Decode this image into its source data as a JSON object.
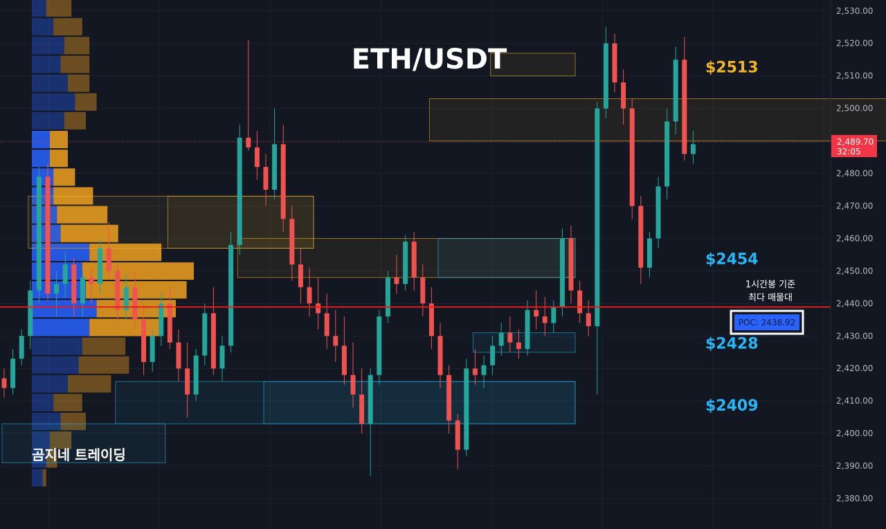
{
  "header": {
    "title": "ETH/USDT"
  },
  "brand": "곰지네 트레이딩",
  "poc_note": {
    "line1": "1시간봉 기준",
    "line2": "최다 매물대"
  },
  "poc_label": "POC: 2438.92",
  "colors": {
    "background": "#131722",
    "bull": "#26a69a",
    "bear": "#ef5350",
    "poc_line": "#e01e1e",
    "zone_orange": "#f0b429",
    "zone_blue": "#29b6f6",
    "vp_blue": "#2962ff",
    "vp_orange": "#f0a020"
  },
  "chart_data": {
    "type": "candlestick",
    "title": "ETH/USDT",
    "xlabel": "",
    "ylabel": "",
    "ylim": [
      2374,
      2533
    ],
    "y_ticks": [
      "2,380.00",
      "2,390.00",
      "2,400.00",
      "2,410.00",
      "2,420.00",
      "2,430.00",
      "2,440.00",
      "2,450.00",
      "2,460.00",
      "2,470.00",
      "2,480.00",
      "2,490.00",
      "2,500.00",
      "2,510.00",
      "2,520.00",
      "2,530.00"
    ],
    "y_tick_values": [
      2380,
      2390,
      2400,
      2410,
      2420,
      2430,
      2440,
      2450,
      2460,
      2470,
      2480,
      2490,
      2500,
      2510,
      2520,
      2530
    ],
    "current_price": {
      "value": 2489.7,
      "label": "2,489.70",
      "countdown": "32:05"
    },
    "poc": {
      "value": 2438.92
    },
    "zone_labels": [
      {
        "text": "$2513",
        "value": 2513,
        "color": "orange"
      },
      {
        "text": "$2454",
        "value": 2454,
        "color": "blue"
      },
      {
        "text": "$2428",
        "value": 2428,
        "color": "blue"
      },
      {
        "text": "$2409",
        "value": 2409,
        "color": "blue"
      }
    ],
    "zones": [
      {
        "start": 0,
        "end": 18,
        "high": 2403,
        "low": 2391,
        "color": "blue"
      },
      {
        "start": 49,
        "end": 110,
        "high": 2503,
        "low": 2490,
        "color": "orange"
      },
      {
        "start": 3,
        "end": 35,
        "high": 2473,
        "low": 2457,
        "color": "orange"
      },
      {
        "start": 19,
        "end": 35,
        "high": 2473,
        "low": 2457,
        "color": "orange"
      },
      {
        "start": 27,
        "end": 65,
        "high": 2460,
        "low": 2448,
        "color": "orange"
      },
      {
        "start": 50,
        "end": 65,
        "high": 2460,
        "low": 2448,
        "color": "blue"
      },
      {
        "start": 54,
        "end": 65,
        "high": 2431,
        "low": 2425,
        "color": "blue"
      },
      {
        "start": 13,
        "end": 65,
        "high": 2416,
        "low": 2403,
        "color": "blue"
      },
      {
        "start": 30,
        "end": 65,
        "high": 2416,
        "low": 2403,
        "color": "blue"
      },
      {
        "start": 56,
        "end": 65,
        "high": 2517,
        "low": 2510,
        "color": "orange"
      }
    ],
    "volume_profile": {
      "price_start": 2383.5,
      "row_height": 5.78,
      "buy": [
        3,
        4,
        5,
        8,
        6,
        10,
        13,
        14,
        16,
        18,
        15,
        14,
        16,
        8,
        7,
        6,
        6,
        5,
        5,
        9,
        12,
        10,
        8,
        9,
        6,
        4,
        4,
        3
      ],
      "sell": [
        1,
        3,
        6,
        7,
        8,
        12,
        14,
        12,
        20,
        22,
        28,
        31,
        20,
        16,
        14,
        11,
        6,
        5,
        5,
        6,
        6,
        6,
        8,
        7,
        8,
        7,
        4,
        3
      ]
    },
    "candles": [
      [
        2417,
        2420,
        2411,
        2414
      ],
      [
        2414,
        2426,
        2412,
        2423
      ],
      [
        2423,
        2432,
        2421,
        2430
      ],
      [
        2430,
        2447,
        2426,
        2444
      ],
      [
        2444,
        2482,
        2440,
        2479
      ],
      [
        2479,
        2483,
        2441,
        2443
      ],
      [
        2443,
        2450,
        2436,
        2446
      ],
      [
        2446,
        2456,
        2442,
        2452
      ],
      [
        2452,
        2454,
        2436,
        2440
      ],
      [
        2440,
        2450,
        2436,
        2448
      ],
      [
        2448,
        2451,
        2440,
        2446
      ],
      [
        2446,
        2460,
        2443,
        2457
      ],
      [
        2457,
        2465,
        2448,
        2450
      ],
      [
        2450,
        2452,
        2434,
        2438
      ],
      [
        2438,
        2449,
        2435,
        2445
      ],
      [
        2445,
        2450,
        2432,
        2435
      ],
      [
        2435,
        2440,
        2418,
        2422
      ],
      [
        2422,
        2432,
        2419,
        2430
      ],
      [
        2430,
        2443,
        2427,
        2440
      ],
      [
        2440,
        2445,
        2426,
        2428
      ],
      [
        2428,
        2432,
        2416,
        2420
      ],
      [
        2420,
        2428,
        2405,
        2412
      ],
      [
        2412,
        2426,
        2410,
        2424
      ],
      [
        2424,
        2440,
        2421,
        2437
      ],
      [
        2437,
        2445,
        2418,
        2420
      ],
      [
        2420,
        2430,
        2416,
        2427
      ],
      [
        2427,
        2462,
        2425,
        2458
      ],
      [
        2458,
        2495,
        2455,
        2491
      ],
      [
        2491,
        2521,
        2487,
        2488
      ],
      [
        2488,
        2493,
        2478,
        2482
      ],
      [
        2482,
        2486,
        2470,
        2475
      ],
      [
        2475,
        2500,
        2472,
        2489
      ],
      [
        2489,
        2495,
        2462,
        2466
      ],
      [
        2466,
        2470,
        2447,
        2452
      ],
      [
        2452,
        2457,
        2440,
        2445
      ],
      [
        2445,
        2451,
        2436,
        2440
      ],
      [
        2440,
        2448,
        2432,
        2437
      ],
      [
        2437,
        2443,
        2426,
        2430
      ],
      [
        2430,
        2438,
        2422,
        2427
      ],
      [
        2427,
        2436,
        2415,
        2418
      ],
      [
        2418,
        2428,
        2408,
        2412
      ],
      [
        2412,
        2420,
        2400,
        2403
      ],
      [
        2403,
        2420,
        2387,
        2418
      ],
      [
        2418,
        2438,
        2415,
        2436
      ],
      [
        2436,
        2450,
        2434,
        2448
      ],
      [
        2448,
        2455,
        2443,
        2446
      ],
      [
        2446,
        2461,
        2444,
        2459
      ],
      [
        2459,
        2462,
        2444,
        2448
      ],
      [
        2448,
        2452,
        2436,
        2440
      ],
      [
        2440,
        2445,
        2426,
        2430
      ],
      [
        2430,
        2434,
        2414,
        2418
      ],
      [
        2418,
        2421,
        2400,
        2404
      ],
      [
        2404,
        2406,
        2389,
        2395
      ],
      [
        2395,
        2423,
        2393,
        2420
      ],
      [
        2420,
        2426,
        2415,
        2418
      ],
      [
        2418,
        2424,
        2414,
        2421
      ],
      [
        2421,
        2430,
        2418,
        2427
      ],
      [
        2427,
        2434,
        2424,
        2431
      ],
      [
        2431,
        2436,
        2425,
        2428
      ],
      [
        2428,
        2432,
        2423,
        2426
      ],
      [
        2426,
        2441,
        2424,
        2438
      ],
      [
        2438,
        2444,
        2432,
        2436
      ],
      [
        2436,
        2442,
        2430,
        2434
      ],
      [
        2434,
        2441,
        2431,
        2439
      ],
      [
        2439,
        2463,
        2436,
        2460
      ],
      [
        2460,
        2464,
        2440,
        2444
      ],
      [
        2444,
        2447,
        2434,
        2437
      ],
      [
        2437,
        2441,
        2430,
        2433
      ],
      [
        2433,
        2502,
        2412,
        2500
      ],
      [
        2500,
        2525,
        2497,
        2520
      ],
      [
        2520,
        2523,
        2505,
        2508
      ],
      [
        2508,
        2512,
        2495,
        2500
      ],
      [
        2500,
        2503,
        2466,
        2470
      ],
      [
        2470,
        2473,
        2446,
        2451
      ],
      [
        2451,
        2462,
        2448,
        2460
      ],
      [
        2460,
        2479,
        2457,
        2476
      ],
      [
        2476,
        2500,
        2472,
        2496
      ],
      [
        2496,
        2519,
        2492,
        2515
      ],
      [
        2515,
        2522,
        2484,
        2486
      ],
      [
        2486,
        2493,
        2483,
        2489
      ]
    ]
  }
}
